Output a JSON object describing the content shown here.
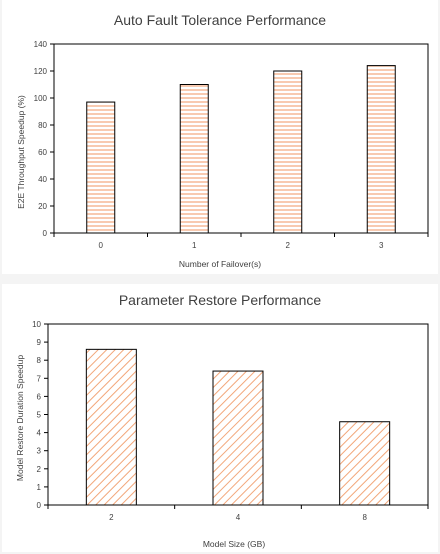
{
  "chart_data": [
    {
      "type": "bar",
      "title": "Auto Fault Tolerance Performance",
      "xlabel": "Number of Failover(s)",
      "ylabel": "E2E Throughput Speedup (%)",
      "categories": [
        "0",
        "1",
        "2",
        "3"
      ],
      "values": [
        97,
        110,
        120,
        124
      ],
      "ylim": [
        0,
        140
      ],
      "yticks": [
        "0",
        "20",
        "40",
        "60",
        "80",
        "100",
        "120",
        "140"
      ],
      "pattern": "horizontal-lines",
      "bar_color": "#f2a77a",
      "grid": false
    },
    {
      "type": "bar",
      "title": "Parameter Restore Performance",
      "xlabel": "Model Size (GB)",
      "ylabel": "Model Restore Duration Speedup",
      "categories": [
        "2",
        "4",
        "8"
      ],
      "values": [
        8.6,
        7.4,
        4.6
      ],
      "ylim": [
        0,
        10
      ],
      "yticks": [
        "0",
        "1",
        "2",
        "3",
        "4",
        "5",
        "6",
        "7",
        "8",
        "9",
        "10"
      ],
      "pattern": "diagonal-lines",
      "bar_color": "#f2a77a",
      "grid": false
    }
  ]
}
